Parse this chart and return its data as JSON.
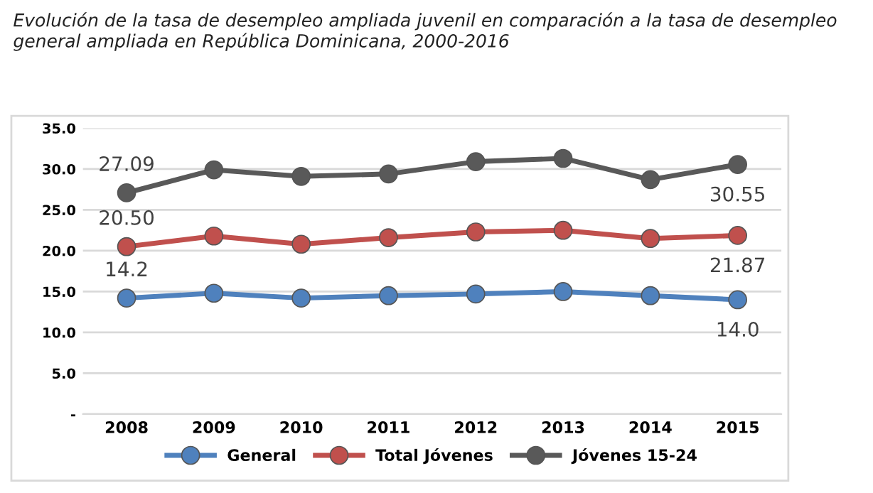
{
  "chart_data": {
    "type": "line",
    "title": "Evolución de la tasa de desempleo ampliada juvenil en comparación a la tasa de desempleo general ampliada en República Dominicana, 2000-2016",
    "categories": [
      "2008",
      "2009",
      "2010",
      "2011",
      "2012",
      "2013",
      "2014",
      "2015"
    ],
    "series": [
      {
        "name": "General",
        "color": "#4f81bd",
        "values": [
          14.2,
          14.8,
          14.2,
          14.5,
          14.7,
          15.0,
          14.5,
          14.0
        ],
        "value_labels": [
          "14.2",
          null,
          null,
          null,
          null,
          null,
          null,
          "14.0"
        ]
      },
      {
        "name": "Total Jóvenes",
        "color": "#c0504d",
        "values": [
          20.5,
          21.8,
          20.8,
          21.6,
          22.3,
          22.5,
          21.5,
          21.87
        ],
        "value_labels": [
          "20.50",
          null,
          null,
          null,
          null,
          null,
          null,
          "21.87"
        ]
      },
      {
        "name": "Jóvenes 15-24",
        "color": "#595959",
        "values": [
          27.09,
          29.9,
          29.1,
          29.4,
          30.9,
          31.3,
          28.7,
          30.55
        ],
        "value_labels": [
          "27.09",
          null,
          null,
          null,
          null,
          null,
          null,
          "30.55"
        ]
      }
    ],
    "ylim": [
      0,
      35
    ],
    "yticks": [
      {
        "value": 0,
        "label": "-"
      },
      {
        "value": 5,
        "label": "5.0"
      },
      {
        "value": 10,
        "label": "10.0"
      },
      {
        "value": 15,
        "label": "15.0"
      },
      {
        "value": 20,
        "label": "20.0"
      },
      {
        "value": 25,
        "label": "25.0"
      },
      {
        "value": 30,
        "label": "30.0"
      },
      {
        "value": 35,
        "label": "35.0"
      }
    ],
    "grid": "y",
    "legend": "bottom",
    "marker": "circle",
    "line_style": "solid"
  }
}
